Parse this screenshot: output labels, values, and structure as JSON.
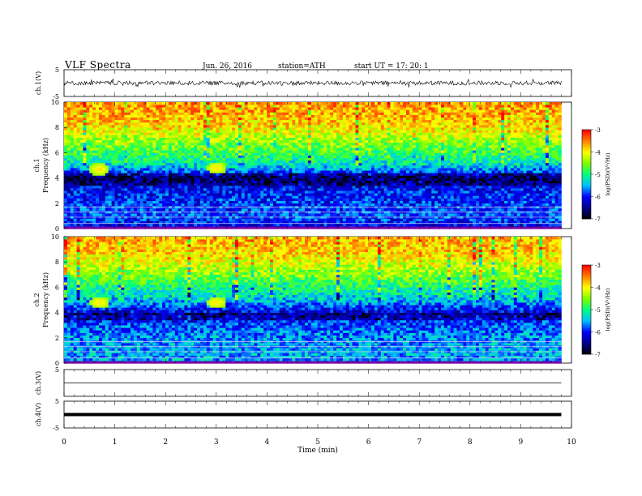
{
  "header": {
    "title": "VLF  Spectra",
    "date": "Jun. 26, 2016",
    "station": "station=ATH",
    "start": "start  UT  =    17: 20: 1"
  },
  "colors": {
    "colormap": [
      "#000000",
      "#00008b",
      "#0000ff",
      "#00bfff",
      "#00ff7f",
      "#7fff00",
      "#ffff00",
      "#ff7f00",
      "#ff0000",
      "#ffdddd"
    ]
  },
  "chart_data": [
    {
      "type": "line",
      "name": "ch1-waveform",
      "ylabel": "ch.1(V)",
      "ylim": [
        -5,
        5
      ],
      "y_ticks": [
        "5",
        "-5"
      ],
      "x_range_min": [
        0,
        9.8
      ],
      "baseline": 0,
      "amplitude_range": [
        -1.5,
        1.5
      ]
    },
    {
      "type": "heatmap",
      "name": "ch1-spectrogram",
      "panel_label": "ch.1",
      "ylabel": "Frequency  (kHz)",
      "ylim": [
        0,
        10
      ],
      "y_ticks": [
        "0",
        "2",
        "4",
        "6",
        "8",
        "10"
      ],
      "colorbar": {
        "label": "log(PSD)(V²/Hz)",
        "ticks": [
          "-3",
          "-4",
          "-5",
          "-6",
          "-7"
        ],
        "range": [
          -7,
          -3
        ]
      },
      "profile_khz_logpsd": [
        [
          0,
          -6.2
        ],
        [
          1,
          -5.8
        ],
        [
          2,
          -5.9
        ],
        [
          3,
          -6.0
        ],
        [
          4,
          -6.4
        ],
        [
          5,
          -5.3
        ],
        [
          6,
          -4.8
        ],
        [
          7,
          -4.4
        ],
        [
          8,
          -3.9
        ],
        [
          9,
          -3.7
        ],
        [
          10,
          -3.6
        ]
      ],
      "dark_band_khz": [
        3.5,
        4.3
      ],
      "hot_spots": [
        {
          "t": 0.7,
          "f": 4.7
        },
        {
          "t": 3.0,
          "f": 4.8
        }
      ]
    },
    {
      "type": "heatmap",
      "name": "ch2-spectrogram",
      "panel_label": "ch.2",
      "ylabel": "Frequency  (kHz)",
      "ylim": [
        0,
        10
      ],
      "y_ticks": [
        "0",
        "2",
        "4",
        "6",
        "8",
        "10"
      ],
      "colorbar": {
        "label": "log(PSD)(V²/Hz)",
        "ticks": [
          "-3",
          "-4",
          "-5",
          "-6",
          "-7"
        ],
        "range": [
          -7,
          -3
        ]
      },
      "profile_khz_logpsd": [
        [
          0,
          -5.6
        ],
        [
          1,
          -5.5
        ],
        [
          2,
          -5.6
        ],
        [
          3,
          -5.8
        ],
        [
          4,
          -6.2
        ],
        [
          5,
          -5.4
        ],
        [
          6,
          -5.0
        ],
        [
          7,
          -4.5
        ],
        [
          8,
          -4.1
        ],
        [
          9,
          -3.8
        ],
        [
          10,
          -3.7
        ]
      ],
      "dark_band_khz": [
        3.4,
        4.0
      ],
      "hot_spots": [
        {
          "t": 0.7,
          "f": 4.8
        },
        {
          "t": 3.0,
          "f": 4.8
        }
      ]
    },
    {
      "type": "line",
      "name": "ch3-waveform",
      "ylabel": "ch.3(V)",
      "ylim": [
        -5,
        5
      ],
      "y_ticks": [
        "5"
      ],
      "baseline": 0
    },
    {
      "type": "line",
      "name": "ch4-waveform",
      "ylabel": "ch.4(V)",
      "ylim": [
        -5,
        5
      ],
      "y_ticks": [
        "5",
        "-5"
      ],
      "baseline": 0
    }
  ],
  "x_axis": {
    "label": "Time  (min)",
    "ticks": [
      "0",
      "1",
      "2",
      "3",
      "4",
      "5",
      "6",
      "7",
      "8",
      "9",
      "10"
    ],
    "range": [
      0,
      10
    ],
    "data_end": 9.8
  }
}
